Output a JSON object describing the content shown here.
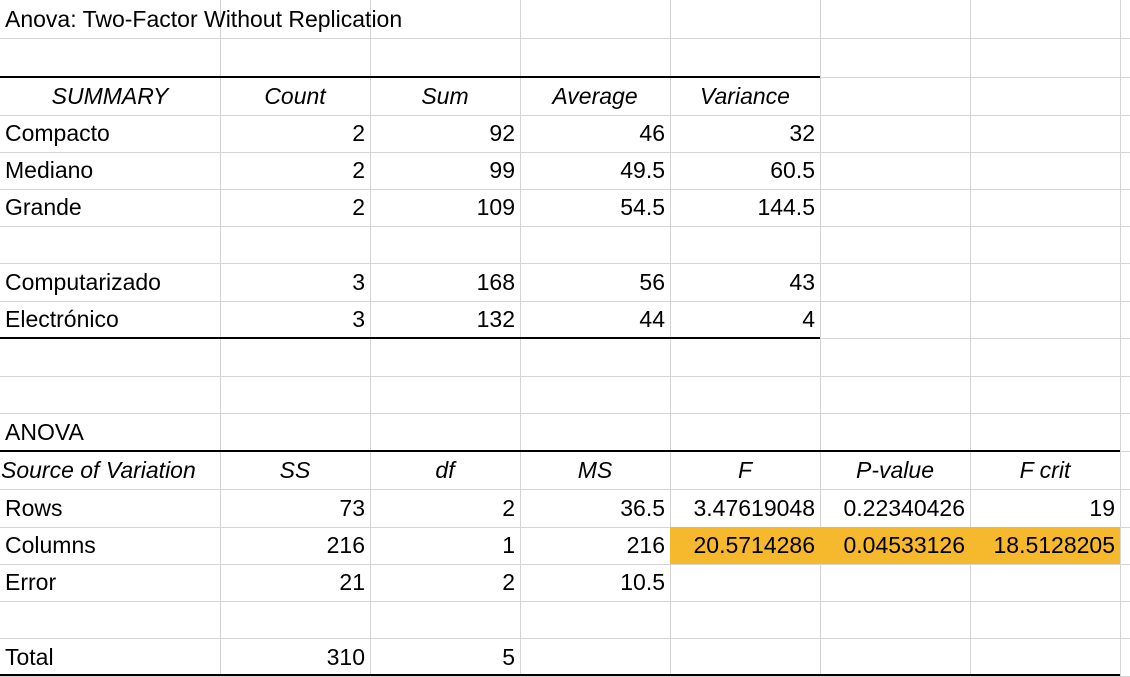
{
  "title": "Anova: Two-Factor Without Replication",
  "summary": {
    "headers": [
      "SUMMARY",
      "Count",
      "Sum",
      "Average",
      "Variance"
    ],
    "rows": [
      [
        "Compacto",
        "2",
        "92",
        "46",
        "32"
      ],
      [
        "Mediano",
        "2",
        "99",
        "49.5",
        "60.5"
      ],
      [
        "Grande",
        "2",
        "109",
        "54.5",
        "144.5"
      ],
      [
        "",
        "",
        "",
        "",
        ""
      ],
      [
        "Computarizado",
        "3",
        "168",
        "56",
        "43"
      ],
      [
        "Electrónico",
        "3",
        "132",
        "44",
        "4"
      ]
    ]
  },
  "anova": {
    "label": "ANOVA",
    "headers": [
      "Source of Variation",
      "SS",
      "df",
      "MS",
      "F",
      "P-value",
      "F crit"
    ],
    "rows": [
      [
        "Rows",
        "73",
        "2",
        "36.5",
        "3.47619048",
        "0.22340426",
        "19"
      ],
      [
        "Columns",
        "216",
        "1",
        "216",
        "20.5714286",
        "0.04533126",
        "18.5128205"
      ],
      [
        "Error",
        "21",
        "2",
        "10.5",
        "",
        "",
        ""
      ],
      [
        "",
        "",
        "",
        "",
        "",
        "",
        ""
      ],
      [
        "Total",
        "310",
        "5",
        "",
        "",
        "",
        ""
      ]
    ],
    "highlight_color": "#f6b82c"
  }
}
